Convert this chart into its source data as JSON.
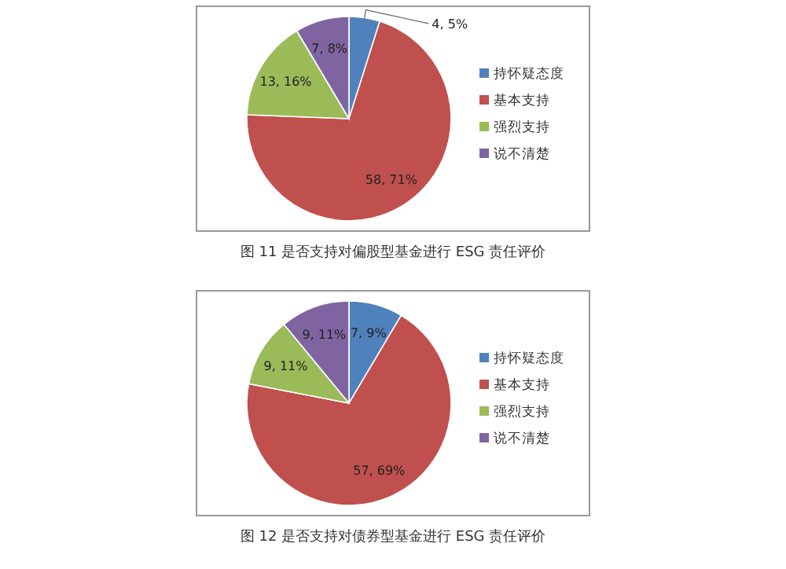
{
  "chart_data": [
    {
      "type": "pie",
      "title": "图 11 是否支持对偏股型基金进行 ESG 责任评价",
      "categories": [
        "持怀疑态度",
        "基本支持",
        "强烈支持",
        "说不清楚"
      ],
      "values": [
        4,
        58,
        13,
        7
      ],
      "colors": [
        "#4f81bd",
        "#c0504d",
        "#9bbb59",
        "#8064a2"
      ],
      "value_labels": [
        "4, 5%",
        "58, 71%",
        "13, 16%",
        "7, 8%"
      ],
      "legend": "right"
    },
    {
      "type": "pie",
      "title": "图 12 是否支持对债券型基金进行 ESG 责任评价",
      "categories": [
        "持怀疑态度",
        "基本支持",
        "强烈支持",
        "说不清楚"
      ],
      "values": [
        7,
        57,
        9,
        9
      ],
      "colors": [
        "#4f81bd",
        "#c0504d",
        "#9bbb59",
        "#8064a2"
      ],
      "value_labels": [
        "7, 9%",
        "57, 69%",
        "9, 11%",
        "9, 11%"
      ],
      "legend": "right"
    }
  ]
}
